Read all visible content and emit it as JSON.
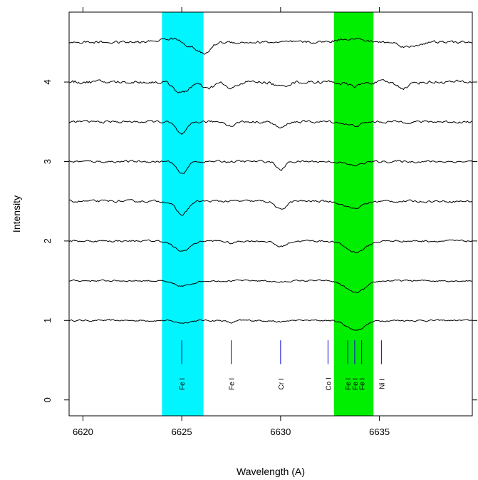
{
  "chart_data": {
    "type": "line",
    "xlabel": "Wavelength (A)",
    "ylabel": "Intensity",
    "xlim": [
      6619.3,
      6639.7
    ],
    "ylim": [
      -0.2,
      4.88
    ],
    "x_ticks": [
      6620,
      6625,
      6630,
      6635
    ],
    "y_ticks": [
      0,
      1,
      2,
      3,
      4
    ],
    "grid": false,
    "highlight_bands": [
      {
        "name": "cyan band",
        "x_start": 6624.0,
        "x_end": 6626.1,
        "color": "#00f5ff"
      },
      {
        "name": "green band",
        "x_start": 6632.7,
        "x_end": 6634.7,
        "color": "#00ee00"
      }
    ],
    "spectra": [
      {
        "offset": 1.0,
        "noise": 0.012,
        "features": [
          {
            "center": 6625.0,
            "depth": 0.03,
            "width": 0.35
          },
          {
            "center": 6627.5,
            "depth": 0.03,
            "width": 0.2
          },
          {
            "center": 6630.0,
            "depth": 0.02,
            "width": 0.25
          },
          {
            "center": 6633.8,
            "depth": 0.12,
            "width": 0.45
          }
        ]
      },
      {
        "offset": 1.5,
        "noise": 0.012,
        "features": [
          {
            "center": 6625.0,
            "depth": 0.07,
            "width": 0.45
          },
          {
            "center": 6630.0,
            "depth": 0.02,
            "width": 0.3
          },
          {
            "center": 6633.8,
            "depth": 0.15,
            "width": 0.5
          }
        ]
      },
      {
        "offset": 2.0,
        "noise": 0.014,
        "features": [
          {
            "center": 6625.0,
            "depth": 0.13,
            "width": 0.4
          },
          {
            "center": 6627.5,
            "depth": 0.03,
            "width": 0.2
          },
          {
            "center": 6630.0,
            "depth": 0.07,
            "width": 0.3
          },
          {
            "center": 6633.8,
            "depth": 0.14,
            "width": 0.5
          }
        ]
      },
      {
        "offset": 2.5,
        "noise": 0.016,
        "features": [
          {
            "center": 6625.0,
            "depth": 0.17,
            "width": 0.3
          },
          {
            "center": 6630.0,
            "depth": 0.11,
            "width": 0.25
          },
          {
            "center": 6633.7,
            "depth": 0.09,
            "width": 0.45
          }
        ]
      },
      {
        "offset": 3.0,
        "noise": 0.016,
        "features": [
          {
            "center": 6625.0,
            "depth": 0.16,
            "width": 0.25
          },
          {
            "center": 6630.0,
            "depth": 0.11,
            "width": 0.2
          },
          {
            "center": 6633.7,
            "depth": 0.05,
            "width": 0.4
          }
        ]
      },
      {
        "offset": 3.5,
        "noise": 0.018,
        "features": [
          {
            "center": 6625.0,
            "depth": 0.16,
            "width": 0.28
          },
          {
            "center": 6627.5,
            "depth": 0.05,
            "width": 0.2
          },
          {
            "center": 6630.0,
            "depth": 0.08,
            "width": 0.25
          },
          {
            "center": 6633.7,
            "depth": 0.05,
            "width": 0.4
          }
        ]
      },
      {
        "offset": 4.0,
        "noise": 0.024,
        "features": [
          {
            "center": 6625.0,
            "depth": 0.14,
            "width": 0.35
          },
          {
            "center": 6626.3,
            "depth": 0.09,
            "width": 0.3
          },
          {
            "center": 6627.5,
            "depth": 0.09,
            "width": 0.25
          },
          {
            "center": 6630.0,
            "depth": 0.06,
            "width": 0.3
          },
          {
            "center": 6633.7,
            "depth": 0.05,
            "width": 0.4
          },
          {
            "center": 6636.2,
            "depth": 0.07,
            "width": 0.3
          }
        ]
      },
      {
        "offset": 4.5,
        "noise": 0.02,
        "features": [
          {
            "center": 6624.5,
            "depth": -0.05,
            "width": 0.6
          },
          {
            "center": 6625.7,
            "depth": 0.08,
            "width": 0.5
          },
          {
            "center": 6626.2,
            "depth": 0.1,
            "width": 0.25
          },
          {
            "center": 6633.5,
            "depth": -0.05,
            "width": 0.6
          },
          {
            "center": 6636.5,
            "depth": 0.06,
            "width": 0.4
          }
        ]
      }
    ],
    "line_markers": [
      {
        "x": 6625.0,
        "label": "Fe I"
      },
      {
        "x": 6627.5,
        "label": "Fe I"
      },
      {
        "x": 6630.0,
        "label": "Cr I"
      },
      {
        "x": 6632.4,
        "label": "Co I"
      },
      {
        "x": 6633.4,
        "label": "Fe I"
      },
      {
        "x": 6633.75,
        "label": "Fe I"
      },
      {
        "x": 6634.1,
        "label": "Fe I"
      },
      {
        "x": 6635.1,
        "label": "Ni I"
      }
    ],
    "marker_y_range": [
      0.45,
      0.75
    ],
    "marker_label_y": 0.2,
    "marker_color": "#0000cc"
  }
}
